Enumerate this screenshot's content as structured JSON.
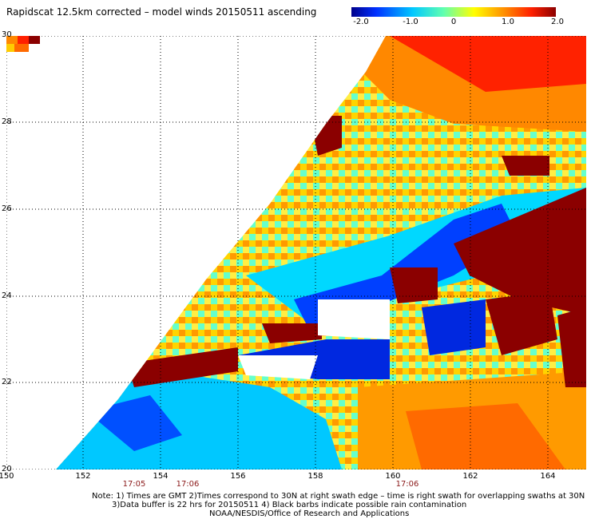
{
  "title": "Rapidscat 12.5km corrected – model winds 20150511 ascending",
  "colorbar": {
    "ticks": [
      "-2.0",
      "-1.0",
      "0",
      "1.0",
      "2.0"
    ],
    "colors": [
      "#00008b",
      "#0030ff",
      "#00c8ff",
      "#60ffb0",
      "#ffff00",
      "#ff8c00",
      "#ff2000",
      "#8b0000"
    ]
  },
  "axes": {
    "x_ticks": [
      "150",
      "152",
      "154",
      "156",
      "158",
      "160",
      "162",
      "164"
    ],
    "y_ticks": [
      "30",
      "28",
      "26",
      "24",
      "22",
      "20"
    ],
    "x_range": [
      150,
      165
    ],
    "y_range": [
      20,
      30
    ]
  },
  "times": [
    {
      "label": "17:05",
      "lon": 153.2
    },
    {
      "label": "17:06",
      "lon": 155.0
    },
    {
      "label": "17:06",
      "lon": 161.0
    }
  ],
  "notes": [
    "Note: 1) Times are GMT 2)Times correspond to 30N at right swath edge – time is right swath for overlapping swaths at 30N",
    "3)Data buffer is 22 hrs for 20150511 4) Black barbs indicate possible rain contamination",
    "NOAA/NESDIS/Office of Research and Applications"
  ]
}
